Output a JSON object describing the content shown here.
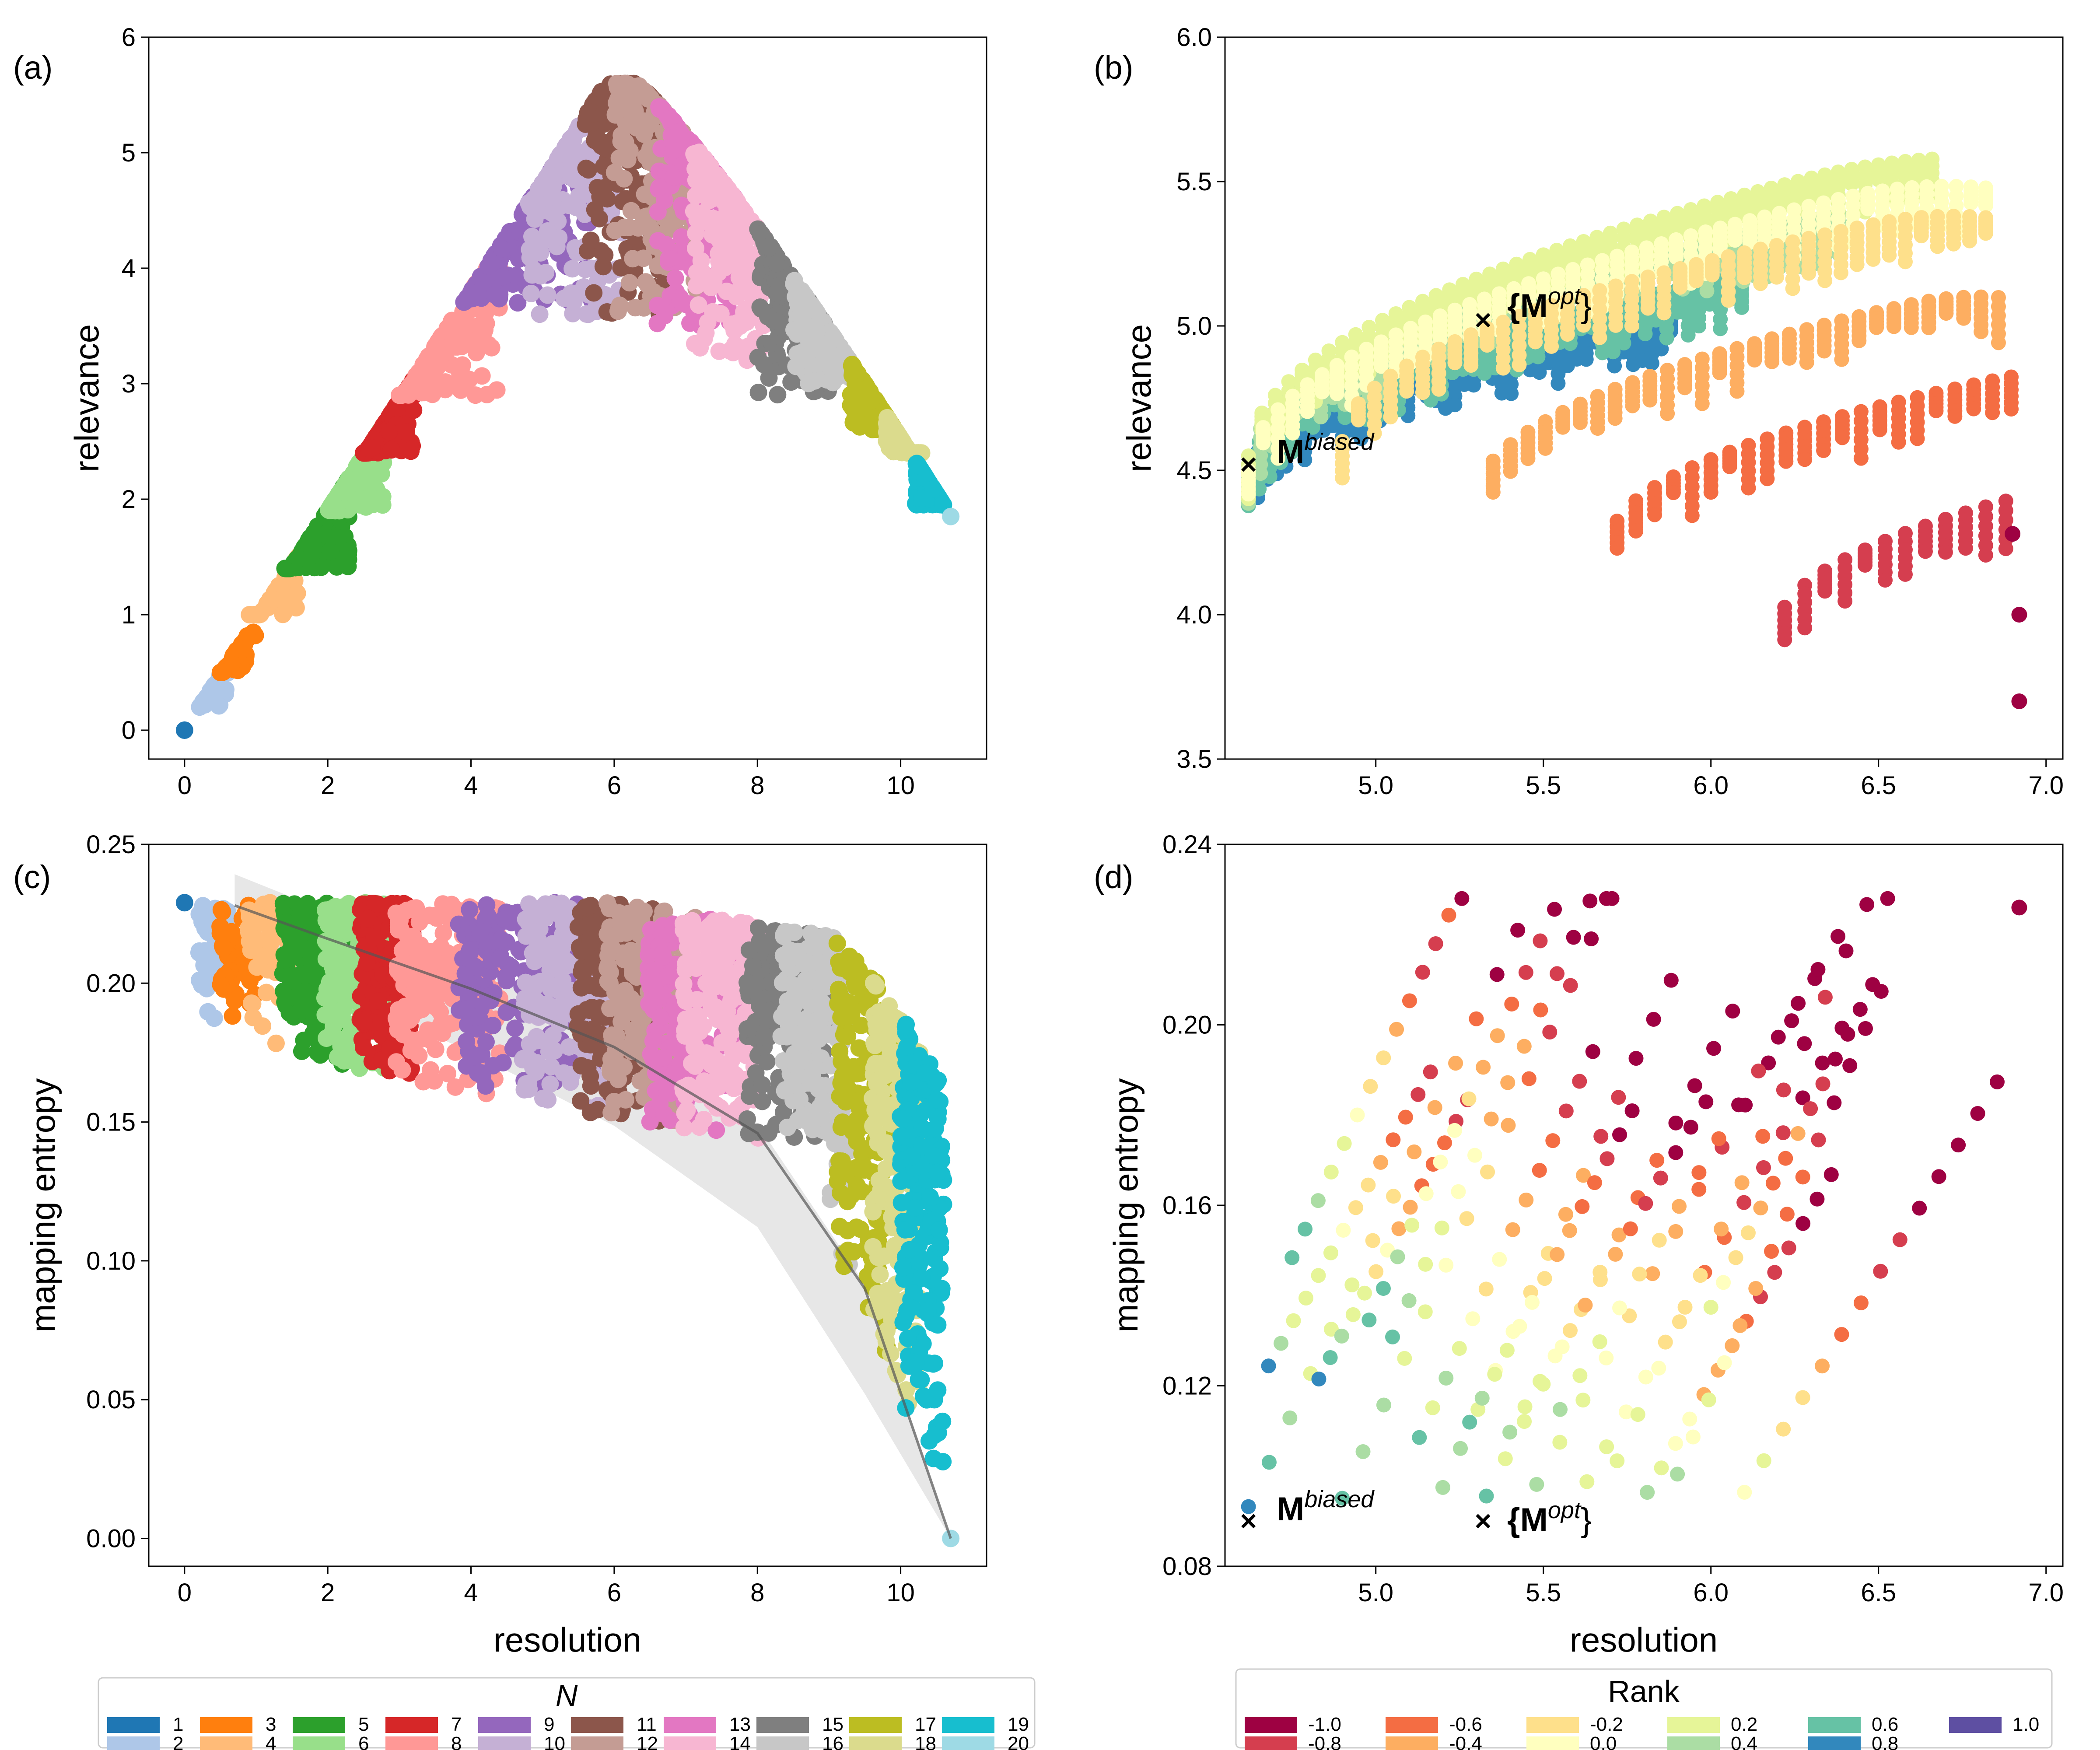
{
  "chart_data": [
    {
      "type": "scatter",
      "panel": "(a)",
      "xlabel": "",
      "ylabel": "relevance",
      "xlim": [
        -0.5,
        11.2
      ],
      "ylim": [
        -0.25,
        6.0
      ],
      "xticks": [
        "0",
        "2",
        "4",
        "6",
        "8",
        "10"
      ],
      "yticks": [
        "0",
        "1",
        "2",
        "3",
        "4",
        "5",
        "6"
      ],
      "legend_title": "N",
      "series_note": "each N is a cluster of points following an arch from (0,0) to (10.7,1.85), peak near (6.3,5.6)",
      "series": [
        {
          "name": "1",
          "color": "#1f77b4",
          "x": [
            0.0
          ],
          "y": [
            0.0
          ]
        },
        {
          "name": "2",
          "color": "#aec7e8",
          "x_range": [
            0.2,
            0.6
          ],
          "y_range": [
            0.2,
            0.5
          ]
        },
        {
          "name": "3",
          "color": "#ff7f0e",
          "x_range": [
            0.5,
            1.0
          ],
          "y_range": [
            0.5,
            1.0
          ]
        },
        {
          "name": "4",
          "color": "#ffbb78",
          "x_range": [
            0.9,
            1.6
          ],
          "y_range": [
            1.0,
            1.6
          ]
        },
        {
          "name": "5",
          "color": "#2ca02c",
          "x_range": [
            1.4,
            2.3
          ],
          "y_range": [
            1.4,
            2.2
          ]
        },
        {
          "name": "6",
          "color": "#98df8a",
          "x_range": [
            2.0,
            2.8
          ],
          "y_range": [
            1.9,
            2.6
          ]
        },
        {
          "name": "7",
          "color": "#d62728",
          "x_range": [
            2.5,
            3.2
          ],
          "y_range": [
            2.4,
            3.1
          ]
        },
        {
          "name": "8",
          "color": "#ff9896",
          "x_range": [
            3.0,
            4.4
          ],
          "y_range": [
            2.9,
            4.0
          ]
        },
        {
          "name": "9",
          "color": "#9467bd",
          "x_range": [
            3.9,
            5.7
          ],
          "y_range": [
            3.7,
            4.9
          ]
        },
        {
          "name": "10",
          "color": "#c5b0d5",
          "x_range": [
            4.8,
            6.1
          ],
          "y_range": [
            3.6,
            5.5
          ]
        },
        {
          "name": "11",
          "color": "#8c564b",
          "x_range": [
            5.6,
            6.7
          ],
          "y_range": [
            3.6,
            5.6
          ]
        },
        {
          "name": "12",
          "color": "#c49c94",
          "x_range": [
            6.0,
            7.2
          ],
          "y_range": [
            3.6,
            5.6
          ]
        },
        {
          "name": "13",
          "color": "#e377c2",
          "x_range": [
            6.6,
            7.7
          ],
          "y_range": [
            3.5,
            5.5
          ]
        },
        {
          "name": "14",
          "color": "#f7b6d2",
          "x_range": [
            7.1,
            8.1
          ],
          "y_range": [
            3.2,
            5.2
          ]
        },
        {
          "name": "15",
          "color": "#7f7f7f",
          "x_range": [
            8.0,
            9.0
          ],
          "y_range": [
            2.9,
            5.0
          ]
        },
        {
          "name": "16",
          "color": "#c7c7c7",
          "x_range": [
            8.5,
            9.3
          ],
          "y_range": [
            3.0,
            4.6
          ]
        },
        {
          "name": "17",
          "color": "#bcbd22",
          "x_range": [
            9.3,
            9.9
          ],
          "y_range": [
            2.6,
            3.7
          ]
        },
        {
          "name": "18",
          "color": "#dbdb8d",
          "x_range": [
            9.8,
            10.3
          ],
          "y_range": [
            2.4,
            2.9
          ]
        },
        {
          "name": "19",
          "color": "#17becf",
          "x_range": [
            10.2,
            10.6
          ],
          "y_range": [
            1.95,
            2.45
          ]
        },
        {
          "name": "20",
          "color": "#9edae5",
          "x": [
            10.7
          ],
          "y": [
            1.85
          ]
        }
      ]
    },
    {
      "type": "scatter",
      "panel": "(b)",
      "xlabel": "",
      "ylabel": "relevance",
      "xlim": [
        4.55,
        7.05
      ],
      "ylim": [
        3.5,
        6.0
      ],
      "xticks": [
        "5.0",
        "5.5",
        "6.0",
        "6.5",
        "7.0"
      ],
      "yticks": [
        "3.5",
        "4.0",
        "4.5",
        "5.0",
        "5.5",
        "6.0"
      ],
      "colorbar_title": "Rank",
      "annotations": [
        {
          "label_main": "M",
          "label_sup": "biased",
          "x": 4.62,
          "y": 4.52
        },
        {
          "label_main": "{M",
          "label_sup": "opt",
          "label_end": "}",
          "x": 5.32,
          "y": 5.02
        }
      ]
    },
    {
      "type": "scatter",
      "panel": "(c)",
      "xlabel": "resolution",
      "ylabel": "mapping entropy",
      "xlim": [
        -0.5,
        11.2
      ],
      "ylim": [
        -0.01,
        0.25
      ],
      "xticks": [
        "0",
        "2",
        "4",
        "6",
        "8",
        "10"
      ],
      "yticks": [
        "0.00",
        "0.05",
        "0.10",
        "0.15",
        "0.20",
        "0.25"
      ],
      "trend": {
        "x": [
          0.7,
          2.0,
          4.0,
          6.0,
          8.0,
          9.5,
          10.7
        ],
        "y": [
          0.228,
          0.216,
          0.198,
          0.177,
          0.146,
          0.09,
          0.0
        ]
      }
    },
    {
      "type": "scatter",
      "panel": "(d)",
      "xlabel": "resolution",
      "ylabel": "mapping entropy",
      "xlim": [
        4.55,
        7.05
      ],
      "ylim": [
        0.08,
        0.24
      ],
      "xticks": [
        "5.0",
        "5.5",
        "6.0",
        "6.5",
        "7.0"
      ],
      "yticks": [
        "0.08",
        "0.12",
        "0.16",
        "0.20",
        "0.24"
      ],
      "annotations": [
        {
          "label_main": "M",
          "label_sup": "biased",
          "x": 4.62,
          "y": 0.09
        },
        {
          "label_main": "{M",
          "label_sup": "opt",
          "label_end": "}",
          "x": 5.32,
          "y": 0.09
        }
      ]
    }
  ],
  "panel_labels": [
    "(a)",
    "(b)",
    "(c)",
    "(d)"
  ],
  "legend_n": {
    "title": "N",
    "entries": [
      {
        "label": "1",
        "color": "#1f77b4"
      },
      {
        "label": "2",
        "color": "#aec7e8"
      },
      {
        "label": "3",
        "color": "#ff7f0e"
      },
      {
        "label": "4",
        "color": "#ffbb78"
      },
      {
        "label": "5",
        "color": "#2ca02c"
      },
      {
        "label": "6",
        "color": "#98df8a"
      },
      {
        "label": "7",
        "color": "#d62728"
      },
      {
        "label": "8",
        "color": "#ff9896"
      },
      {
        "label": "9",
        "color": "#9467bd"
      },
      {
        "label": "10",
        "color": "#c5b0d5"
      },
      {
        "label": "11",
        "color": "#8c564b"
      },
      {
        "label": "12",
        "color": "#c49c94"
      },
      {
        "label": "13",
        "color": "#e377c2"
      },
      {
        "label": "14",
        "color": "#f7b6d2"
      },
      {
        "label": "15",
        "color": "#7f7f7f"
      },
      {
        "label": "16",
        "color": "#c7c7c7"
      },
      {
        "label": "17",
        "color": "#bcbd22"
      },
      {
        "label": "18",
        "color": "#dbdb8d"
      },
      {
        "label": "19",
        "color": "#17becf"
      },
      {
        "label": "20",
        "color": "#9edae5"
      }
    ]
  },
  "legend_rank": {
    "title": "Rank",
    "entries": [
      {
        "label": "-1.0",
        "color": "#9e0142"
      },
      {
        "label": "-0.8",
        "color": "#d53e4f"
      },
      {
        "label": "-0.6",
        "color": "#f46d43"
      },
      {
        "label": "-0.4",
        "color": "#fdae61"
      },
      {
        "label": "-0.2",
        "color": "#fee08b"
      },
      {
        "label": "0.0",
        "color": "#ffffbf"
      },
      {
        "label": "0.2",
        "color": "#e6f598"
      },
      {
        "label": "0.4",
        "color": "#abdda4"
      },
      {
        "label": "0.6",
        "color": "#66c2a5"
      },
      {
        "label": "0.8",
        "color": "#3288bd"
      },
      {
        "label": "1.0",
        "color": "#5e4fa2"
      }
    ]
  }
}
